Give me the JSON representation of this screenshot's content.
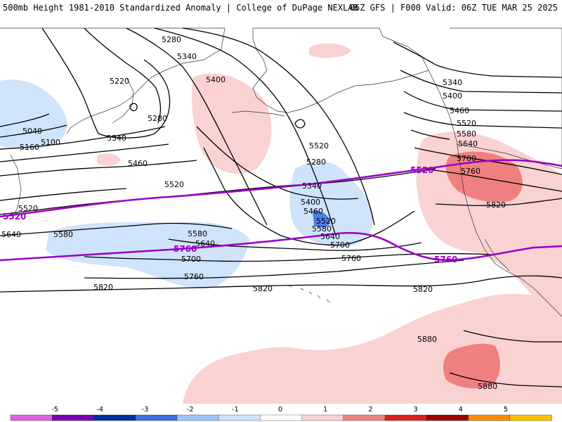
{
  "header": {
    "left": "500mb Height 1981-2010 Standardized Anomaly | College of DuPage NEXLAB",
    "right": "06Z GFS | F000 Valid: 06Z TUE MAR 25 2025"
  },
  "contours": {
    "labels": [
      "5280",
      "5340",
      "5400",
      "5220",
      "5040",
      "5100",
      "5160",
      "5340",
      "5280",
      "5460",
      "5520",
      "5520",
      "5520",
      "5580",
      "5640",
      "5580",
      "5640",
      "5700",
      "5760",
      "5820",
      "5820",
      "5280",
      "5340",
      "5400",
      "5460",
      "5520",
      "5580",
      "5640",
      "5700",
      "5760",
      "5820",
      "5340",
      "5400",
      "5460",
      "5520",
      "5580",
      "5640",
      "5700",
      "5760",
      "5820",
      "5880",
      "5880"
    ],
    "highlight": [
      "5520",
      "5520",
      "5760",
      "5760"
    ]
  },
  "colorbar": {
    "ticks": [
      "-5",
      "-4",
      "-3",
      "-2",
      "-1",
      "0",
      "1",
      "2",
      "3",
      "4",
      "5"
    ],
    "colors": [
      "#e060e0",
      "#7a00b8",
      "#0030a0",
      "#3a70e0",
      "#9cc4f5",
      "#cfe3fa",
      "#ffffff",
      "#fad2d2",
      "#f08080",
      "#e02020",
      "#a00000",
      "#ff8c00",
      "#ffc000"
    ]
  }
}
